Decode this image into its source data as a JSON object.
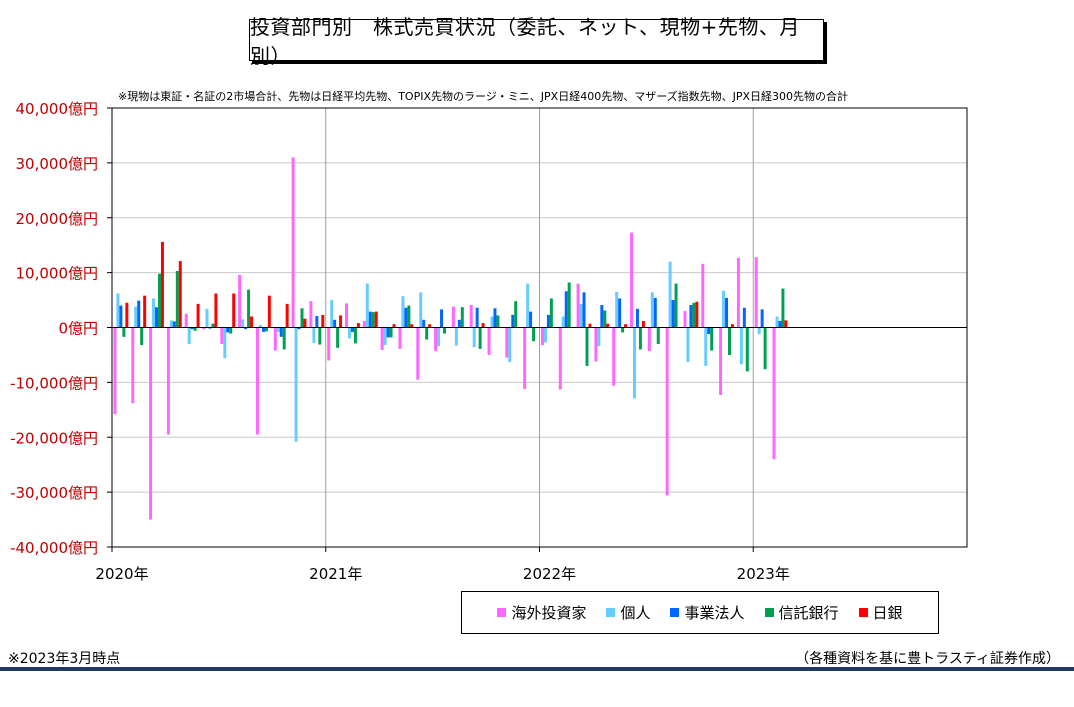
{
  "chart_data": {
    "type": "bar",
    "title": "投資部門別　株式売買状況（委託、ネット、現物+先物、月別）",
    "note": "※現物は東証・名証の2市場合計、先物は日経平均先物、TOPIX先物のラージ・ミニ、JPX日経400先物、マザーズ指数先物、JPX日経300先物の合計",
    "ylim": [
      -40000,
      40000
    ],
    "y_ticks": [
      40000,
      30000,
      20000,
      10000,
      0,
      -10000,
      -20000,
      -30000,
      -40000
    ],
    "y_tick_labels": [
      "40,000億円",
      "30,000億円",
      "20,000億円",
      "10,000億円",
      "0億円",
      "-10,000億円",
      "-20,000億円",
      "-30,000億円",
      "-40,000億円"
    ],
    "x_tick_labels": [
      "2020年",
      "2021年",
      "2022年",
      "2023年"
    ],
    "x_tick_month_index": [
      0,
      12,
      24,
      36
    ],
    "slots": 48,
    "grid": true,
    "legend_position": "bottom-right",
    "categories": [
      "2020-01",
      "2020-02",
      "2020-03",
      "2020-04",
      "2020-05",
      "2020-06",
      "2020-07",
      "2020-08",
      "2020-09",
      "2020-10",
      "2020-11",
      "2020-12",
      "2021-01",
      "2021-02",
      "2021-03",
      "2021-04",
      "2021-05",
      "2021-06",
      "2021-07",
      "2021-08",
      "2021-09",
      "2021-10",
      "2021-11",
      "2021-12",
      "2022-01",
      "2022-02",
      "2022-03",
      "2022-04",
      "2022-05",
      "2022-06",
      "2022-07",
      "2022-08",
      "2022-09",
      "2022-10",
      "2022-11",
      "2022-12",
      "2023-01",
      "2023-02",
      "2023-03"
    ],
    "series": [
      {
        "name": "海外投資家",
        "color": "#ff66ff",
        "values": [
          -15800,
          -13800,
          -35000,
          -19500,
          2500,
          -300,
          -3000,
          9600,
          -19500,
          -4200,
          31000,
          4800,
          -6000,
          4400,
          1200,
          -4100,
          -3900,
          -9500,
          -4300,
          3800,
          4100,
          -5000,
          -5500,
          -11200,
          -3200,
          -11300,
          8000,
          -6200,
          -10600,
          17300,
          -4300,
          -30600,
          3000,
          11600,
          -12300,
          12700,
          12800,
          -24000,
          0
        ]
      },
      {
        "name": "個人",
        "color": "#66ccff",
        "values": [
          6200,
          3800,
          5300,
          1300,
          -3000,
          3400,
          -5600,
          1500,
          500,
          -800,
          -20800,
          -2800,
          5000,
          -2000,
          8000,
          -3200,
          5700,
          6400,
          -3400,
          -3300,
          -3600,
          2000,
          -6300,
          8000,
          -2700,
          2000,
          4300,
          -3400,
          6500,
          -12900,
          6400,
          12000,
          -6300,
          -7000,
          6700,
          -6700,
          -1200,
          2000,
          0
        ]
      },
      {
        "name": "事業法人",
        "color": "#0066ff",
        "values": [
          4000,
          4900,
          3700,
          1100,
          -300,
          -200,
          -900,
          -300,
          -800,
          -1700,
          -300,
          2100,
          1400,
          -800,
          2900,
          -1800,
          3600,
          1400,
          3300,
          1400,
          3600,
          3500,
          2300,
          2900,
          2300,
          6600,
          6400,
          4100,
          5300,
          3400,
          5400,
          5000,
          4100,
          -1200,
          5400,
          3600,
          3300,
          1200,
          0
        ]
      },
      {
        "name": "信託銀行",
        "color": "#00a050",
        "values": [
          -1700,
          -3200,
          9800,
          10300,
          -600,
          700,
          -1100,
          6900,
          -700,
          -4000,
          3500,
          -3100,
          -3700,
          -2900,
          2800,
          -1800,
          4000,
          -2200,
          -1100,
          3700,
          -3900,
          2200,
          4800,
          -2500,
          5300,
          8200,
          -7000,
          3100,
          -900,
          -4000,
          -3000,
          8000,
          4500,
          -4200,
          -5000,
          -8000,
          -7600,
          7100,
          0
        ]
      },
      {
        "name": "日銀",
        "color": "#ff0000",
        "values": [
          4500,
          5800,
          15600,
          12100,
          4300,
          6200,
          6200,
          2000,
          5800,
          4300,
          1600,
          2300,
          2200,
          800,
          2900,
          600,
          600,
          600,
          0,
          0,
          800,
          0,
          0,
          0,
          0,
          0,
          700,
          700,
          600,
          1200,
          0,
          0,
          4700,
          0,
          600,
          0,
          0,
          1300,
          0
        ]
      }
    ]
  },
  "legend": {
    "items": [
      {
        "label": "海外投資家",
        "color": "#ff66ff"
      },
      {
        "label": "個人",
        "color": "#66ccff"
      },
      {
        "label": "事業法人",
        "color": "#0066ff"
      },
      {
        "label": "信託銀行",
        "color": "#00a050"
      },
      {
        "label": "日銀",
        "color": "#ff0000"
      }
    ]
  },
  "footer": {
    "left": "※2023年3月時点",
    "right": "（各種資料を基に豊トラスティ証券作成）"
  },
  "colors": {
    "axis_labels": "#c00000",
    "footer_line": "#1f3864"
  }
}
